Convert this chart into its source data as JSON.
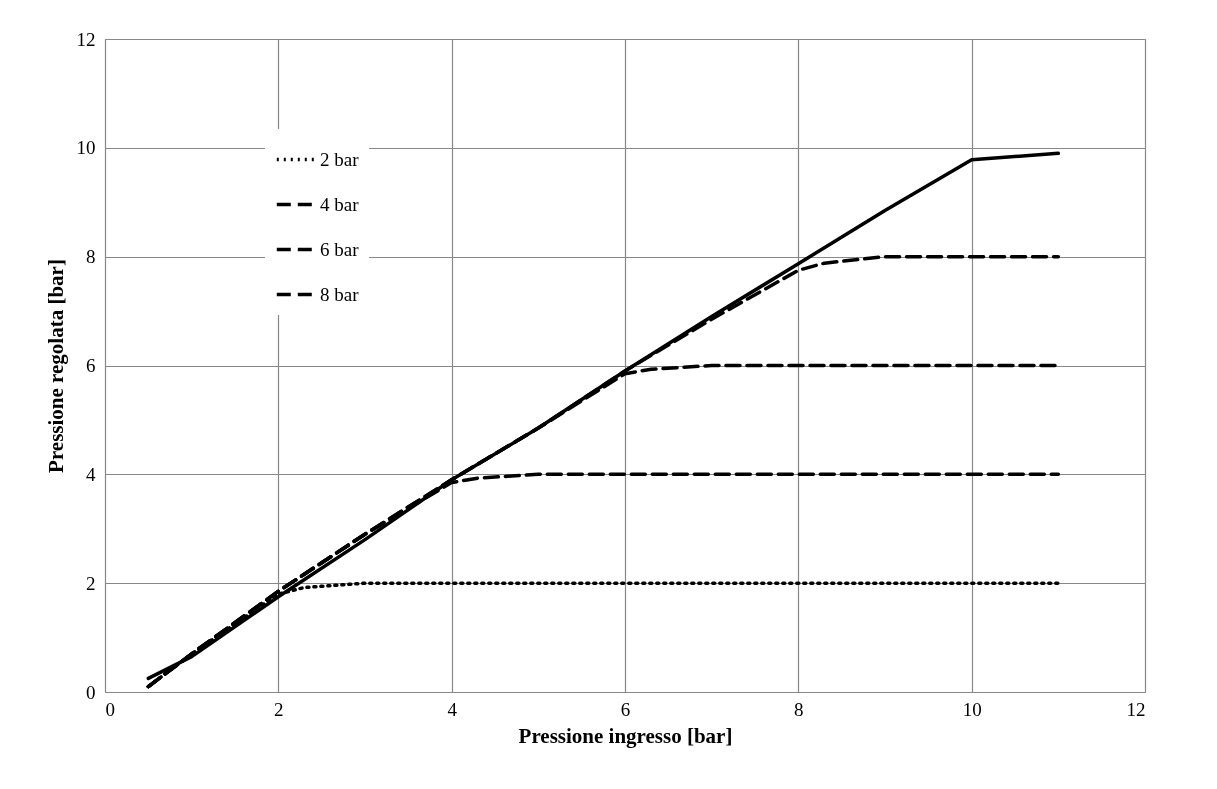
{
  "chart_data": {
    "type": "line",
    "xlabel": "Pressione ingresso [bar]",
    "ylabel": "Pressione regolata [bar]",
    "xlim": [
      0,
      12
    ],
    "xticks": [
      0,
      2,
      4,
      6,
      8,
      10,
      12
    ],
    "ylim": [
      0,
      12
    ],
    "yticks": [
      0,
      2,
      4,
      6,
      8,
      10,
      12
    ],
    "grid": true,
    "legend": "top left",
    "marker": "none",
    "series": [
      {
        "name": "2 bar",
        "color": "#000000",
        "line_style": "dotted",
        "x": [
          0.5,
          1,
          2,
          2.3,
          3,
          4,
          5,
          6,
          7,
          8,
          9,
          10,
          11
        ],
        "values": [
          0.1,
          0.7,
          1.8,
          1.92,
          2,
          2,
          2,
          2,
          2,
          2,
          2,
          2,
          2
        ]
      },
      {
        "name": "4 bar",
        "color": "#000000",
        "line_style": "dashed",
        "x": [
          0.5,
          1,
          2,
          3,
          4,
          4.3,
          5,
          6,
          7,
          8,
          9,
          10,
          11
        ],
        "values": [
          0.1,
          0.7,
          1.85,
          2.9,
          3.85,
          3.93,
          4,
          4,
          4,
          4,
          4,
          4,
          4
        ]
      },
      {
        "name": "6 bar",
        "color": "#000000",
        "line_style": "dashed",
        "x": [
          0.5,
          1,
          2,
          3,
          4,
          5,
          6,
          6.3,
          7,
          8,
          9,
          10,
          11
        ],
        "values": [
          0.1,
          0.7,
          1.85,
          2.9,
          3.9,
          4.85,
          5.85,
          5.93,
          6,
          6,
          6,
          6,
          6
        ]
      },
      {
        "name": "8 bar",
        "color": "#000000",
        "line_style": "dashed",
        "x": [
          0.5,
          1,
          2,
          3,
          4,
          5,
          6,
          7,
          8,
          8.3,
          9,
          10,
          11
        ],
        "values": [
          0.1,
          0.7,
          1.85,
          2.9,
          3.9,
          4.85,
          5.9,
          6.85,
          7.75,
          7.88,
          8,
          8,
          8
        ]
      },
      {
        "color": "#000000",
        "line_style": "solid",
        "x": [
          0.5,
          1,
          2,
          3,
          4,
          5,
          6,
          7,
          8,
          9,
          10,
          11
        ],
        "values": [
          0.25,
          0.65,
          1.75,
          2.8,
          3.9,
          4.85,
          5.9,
          6.9,
          7.87,
          8.85,
          9.78,
          9.9
        ]
      }
    ]
  }
}
